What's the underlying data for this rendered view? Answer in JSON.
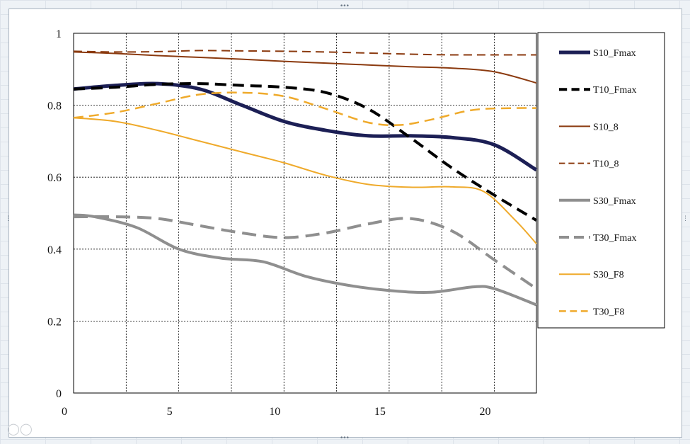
{
  "chart_data": {
    "type": "line",
    "title": "",
    "xlabel": "",
    "ylabel": "",
    "xlim": [
      0,
      22
    ],
    "ylim": [
      0,
      1
    ],
    "x_ticks": [
      "0",
      "5",
      "10",
      "15",
      "20"
    ],
    "y_ticks": [
      "0",
      "0.2",
      "0.4",
      "0.6",
      "0.8",
      "1"
    ],
    "grid": true,
    "legend_position": "right",
    "series": [
      {
        "name": "S10_Fmax",
        "color": "#1c1f55",
        "width": 5,
        "dash": "",
        "x": [
          0,
          2,
          4,
          6,
          8,
          10,
          12,
          14,
          16,
          18,
          20,
          22
        ],
        "y": [
          0.845,
          0.855,
          0.86,
          0.845,
          0.8,
          0.755,
          0.73,
          0.715,
          0.715,
          0.71,
          0.69,
          0.62
        ]
      },
      {
        "name": "T10_Fmax",
        "color": "#000000",
        "width": 4,
        "dash": "16,9",
        "x": [
          0,
          2,
          4,
          6,
          8,
          10,
          12,
          14,
          16,
          18,
          20,
          22
        ],
        "y": [
          0.845,
          0.85,
          0.858,
          0.86,
          0.855,
          0.85,
          0.835,
          0.79,
          0.71,
          0.625,
          0.55,
          0.48
        ]
      },
      {
        "name": "S10_8",
        "color": "#8b3a0f",
        "width": 2,
        "dash": "",
        "x": [
          0,
          2,
          4,
          6,
          8,
          10,
          12,
          14,
          16,
          18,
          20,
          22
        ],
        "y": [
          0.948,
          0.944,
          0.938,
          0.933,
          0.928,
          0.922,
          0.917,
          0.912,
          0.907,
          0.903,
          0.893,
          0.862
        ]
      },
      {
        "name": "T10_8",
        "color": "#8b3a0f",
        "width": 2,
        "dash": "12,7",
        "x": [
          0,
          2,
          4,
          6,
          8,
          10,
          12,
          14,
          16,
          18,
          20,
          22
        ],
        "y": [
          0.95,
          0.948,
          0.949,
          0.952,
          0.951,
          0.95,
          0.948,
          0.945,
          0.942,
          0.94,
          0.94,
          0.94
        ]
      },
      {
        "name": "S30_Fmax",
        "color": "#8f8f8f",
        "width": 4,
        "dash": "",
        "x": [
          0,
          1,
          3,
          5,
          7,
          9,
          11,
          13,
          15,
          17,
          19,
          20,
          22
        ],
        "y": [
          0.495,
          0.49,
          0.46,
          0.4,
          0.375,
          0.365,
          0.325,
          0.3,
          0.285,
          0.28,
          0.295,
          0.29,
          0.245
        ]
      },
      {
        "name": "T30_Fmax",
        "color": "#8f8f8f",
        "width": 4,
        "dash": "20,10",
        "x": [
          0,
          2,
          4,
          6,
          8,
          10,
          12,
          14,
          16,
          18,
          20,
          22
        ],
        "y": [
          0.49,
          0.49,
          0.485,
          0.465,
          0.445,
          0.432,
          0.445,
          0.47,
          0.485,
          0.45,
          0.37,
          0.29
        ]
      },
      {
        "name": "S30_F8",
        "color": "#efaa2b",
        "width": 2,
        "dash": "",
        "x": [
          0,
          2,
          4,
          6,
          8,
          10,
          12,
          14,
          16,
          18,
          19.5,
          21,
          22
        ],
        "y": [
          0.765,
          0.755,
          0.73,
          0.7,
          0.67,
          0.64,
          0.605,
          0.58,
          0.572,
          0.573,
          0.56,
          0.48,
          0.415
        ]
      },
      {
        "name": "T30_F8",
        "color": "#efaa2b",
        "width": 2.5,
        "dash": "14,8",
        "x": [
          0,
          2,
          4,
          6,
          8,
          10,
          12,
          14,
          15.5,
          17,
          19,
          21,
          22
        ],
        "y": [
          0.765,
          0.78,
          0.805,
          0.83,
          0.835,
          0.825,
          0.79,
          0.752,
          0.745,
          0.76,
          0.787,
          0.792,
          0.792
        ]
      }
    ]
  }
}
